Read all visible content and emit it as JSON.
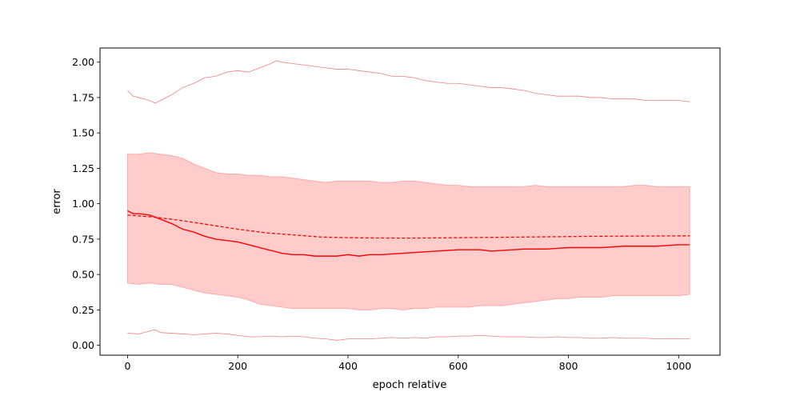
{
  "chart_data": {
    "type": "line",
    "title": "",
    "xlabel": "epoch relative",
    "ylabel": "error",
    "xlim": [
      -50,
      1075
    ],
    "ylim": [
      -0.07,
      2.1
    ],
    "xticks": [
      0,
      200,
      400,
      600,
      800,
      1000
    ],
    "yticks": [
      0.0,
      0.25,
      0.5,
      0.75,
      1.0,
      1.25,
      1.5,
      1.75,
      2.0
    ],
    "xtick_labels": [
      "0",
      "200",
      "400",
      "600",
      "800",
      "1000"
    ],
    "ytick_labels": [
      "0.00",
      "0.25",
      "0.50",
      "0.75",
      "1.00",
      "1.25",
      "1.50",
      "1.75",
      "2.00"
    ],
    "grid": false,
    "legend": "none",
    "colors": {
      "line": "#ff0000",
      "band_fill": "#ffcccc",
      "band_edge": "#ffaaaa",
      "extreme": "#f08080"
    },
    "series": [
      {
        "role": "mean",
        "style": "solid",
        "x": [
          0,
          10,
          20,
          40,
          60,
          80,
          100,
          120,
          140,
          160,
          180,
          200,
          220,
          240,
          260,
          280,
          300,
          320,
          340,
          360,
          380,
          400,
          420,
          440,
          460,
          480,
          500,
          520,
          540,
          560,
          580,
          600,
          620,
          640,
          660,
          680,
          700,
          720,
          740,
          760,
          780,
          800,
          820,
          840,
          860,
          880,
          900,
          920,
          940,
          960,
          980,
          1000,
          1020
        ],
        "y": [
          0.95,
          0.93,
          0.93,
          0.92,
          0.89,
          0.86,
          0.82,
          0.8,
          0.77,
          0.75,
          0.74,
          0.73,
          0.71,
          0.69,
          0.67,
          0.65,
          0.64,
          0.64,
          0.63,
          0.63,
          0.63,
          0.64,
          0.63,
          0.64,
          0.64,
          0.645,
          0.65,
          0.655,
          0.66,
          0.665,
          0.67,
          0.675,
          0.675,
          0.675,
          0.665,
          0.67,
          0.675,
          0.68,
          0.68,
          0.68,
          0.685,
          0.69,
          0.69,
          0.69,
          0.69,
          0.695,
          0.7,
          0.7,
          0.7,
          0.7,
          0.705,
          0.71,
          0.71
        ]
      },
      {
        "role": "trend",
        "style": "dashed",
        "x": [
          0,
          50,
          100,
          150,
          200,
          250,
          300,
          350,
          400,
          450,
          500,
          550,
          600,
          650,
          700,
          750,
          800,
          850,
          900,
          950,
          1000,
          1020
        ],
        "y": [
          0.92,
          0.905,
          0.88,
          0.85,
          0.82,
          0.795,
          0.78,
          0.765,
          0.76,
          0.758,
          0.757,
          0.758,
          0.76,
          0.762,
          0.764,
          0.766,
          0.768,
          0.77,
          0.771,
          0.772,
          0.773,
          0.773
        ]
      },
      {
        "role": "band_upper",
        "x": [
          0,
          20,
          40,
          60,
          80,
          100,
          120,
          140,
          160,
          180,
          200,
          220,
          240,
          260,
          280,
          300,
          320,
          340,
          360,
          380,
          400,
          420,
          440,
          460,
          480,
          500,
          520,
          540,
          560,
          580,
          600,
          620,
          640,
          660,
          680,
          700,
          720,
          740,
          760,
          780,
          800,
          820,
          840,
          860,
          880,
          900,
          920,
          940,
          960,
          980,
          1000,
          1020
        ],
        "y": [
          1.35,
          1.35,
          1.36,
          1.35,
          1.34,
          1.32,
          1.28,
          1.25,
          1.22,
          1.21,
          1.21,
          1.2,
          1.2,
          1.19,
          1.19,
          1.18,
          1.17,
          1.16,
          1.15,
          1.16,
          1.16,
          1.16,
          1.16,
          1.15,
          1.15,
          1.16,
          1.16,
          1.15,
          1.14,
          1.13,
          1.13,
          1.12,
          1.12,
          1.12,
          1.12,
          1.12,
          1.12,
          1.13,
          1.12,
          1.12,
          1.12,
          1.12,
          1.12,
          1.12,
          1.12,
          1.12,
          1.13,
          1.13,
          1.12,
          1.12,
          1.12,
          1.12
        ]
      },
      {
        "role": "band_lower",
        "x": [
          0,
          20,
          40,
          60,
          80,
          100,
          120,
          140,
          160,
          180,
          200,
          220,
          240,
          260,
          280,
          300,
          320,
          340,
          360,
          380,
          400,
          420,
          440,
          460,
          480,
          500,
          520,
          540,
          560,
          580,
          600,
          620,
          640,
          660,
          680,
          700,
          720,
          740,
          760,
          780,
          800,
          820,
          840,
          860,
          880,
          900,
          920,
          940,
          960,
          980,
          1000,
          1020
        ],
        "y": [
          0.44,
          0.43,
          0.44,
          0.43,
          0.43,
          0.41,
          0.39,
          0.37,
          0.36,
          0.35,
          0.34,
          0.32,
          0.29,
          0.28,
          0.27,
          0.26,
          0.26,
          0.26,
          0.26,
          0.26,
          0.26,
          0.25,
          0.25,
          0.26,
          0.26,
          0.25,
          0.26,
          0.26,
          0.27,
          0.27,
          0.27,
          0.27,
          0.28,
          0.28,
          0.28,
          0.29,
          0.3,
          0.31,
          0.32,
          0.33,
          0.33,
          0.34,
          0.34,
          0.34,
          0.35,
          0.35,
          0.35,
          0.35,
          0.35,
          0.35,
          0.35,
          0.36
        ]
      },
      {
        "role": "max",
        "x": [
          0,
          10,
          20,
          40,
          50,
          60,
          80,
          100,
          120,
          140,
          160,
          180,
          200,
          220,
          240,
          260,
          270,
          280,
          300,
          320,
          340,
          360,
          380,
          400,
          420,
          440,
          460,
          480,
          500,
          520,
          540,
          560,
          580,
          600,
          620,
          640,
          660,
          680,
          700,
          720,
          740,
          760,
          780,
          800,
          820,
          840,
          860,
          880,
          900,
          920,
          940,
          960,
          980,
          1000,
          1020
        ],
        "y": [
          1.8,
          1.76,
          1.75,
          1.73,
          1.71,
          1.73,
          1.77,
          1.82,
          1.85,
          1.89,
          1.9,
          1.93,
          1.94,
          1.93,
          1.96,
          1.99,
          2.01,
          2.0,
          1.99,
          1.98,
          1.97,
          1.96,
          1.95,
          1.95,
          1.94,
          1.93,
          1.92,
          1.9,
          1.9,
          1.89,
          1.87,
          1.86,
          1.85,
          1.85,
          1.84,
          1.83,
          1.82,
          1.82,
          1.81,
          1.8,
          1.78,
          1.77,
          1.76,
          1.76,
          1.76,
          1.75,
          1.75,
          1.74,
          1.74,
          1.74,
          1.73,
          1.73,
          1.73,
          1.73,
          1.72
        ]
      },
      {
        "role": "min",
        "x": [
          0,
          20,
          40,
          50,
          60,
          80,
          100,
          120,
          140,
          160,
          180,
          200,
          220,
          240,
          260,
          280,
          300,
          320,
          340,
          360,
          380,
          400,
          420,
          440,
          460,
          480,
          500,
          520,
          540,
          560,
          580,
          600,
          620,
          640,
          660,
          680,
          700,
          720,
          740,
          760,
          780,
          800,
          820,
          840,
          860,
          880,
          900,
          920,
          940,
          960,
          980,
          1000,
          1020
        ],
        "y": [
          0.085,
          0.08,
          0.1,
          0.11,
          0.09,
          0.085,
          0.08,
          0.075,
          0.08,
          0.085,
          0.08,
          0.07,
          0.06,
          0.06,
          0.065,
          0.06,
          0.065,
          0.06,
          0.05,
          0.045,
          0.035,
          0.045,
          0.045,
          0.045,
          0.05,
          0.055,
          0.05,
          0.055,
          0.05,
          0.06,
          0.06,
          0.065,
          0.065,
          0.07,
          0.065,
          0.06,
          0.06,
          0.06,
          0.055,
          0.055,
          0.06,
          0.055,
          0.055,
          0.05,
          0.05,
          0.055,
          0.05,
          0.05,
          0.05,
          0.045,
          0.045,
          0.045,
          0.045
        ]
      }
    ]
  }
}
